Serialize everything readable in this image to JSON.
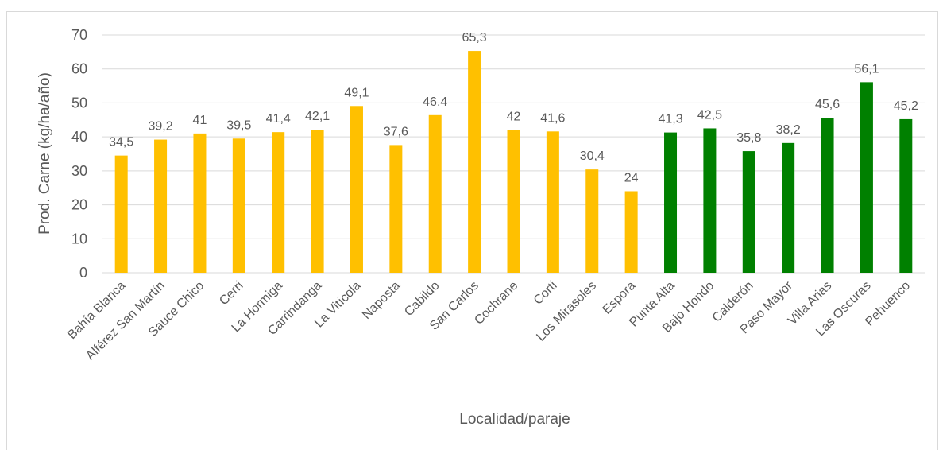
{
  "chart_data": {
    "type": "bar",
    "categories": [
      "Bahía Blanca",
      "Alférez San Martín",
      "Sauce Chico",
      "Cerri",
      "La Hormiga",
      "Carrindanga",
      "La Vitícola",
      "Naposta",
      "Cabildo",
      "San Carlos",
      "Cochrane",
      "Corti",
      "Los Mirasoles",
      "Espora",
      "Punta Alta",
      "Bajo Hondo",
      "Calderón",
      "Paso Mayor",
      "Villa Arias",
      "Las Oscuras",
      "Pehuenco"
    ],
    "values": [
      34.5,
      39.2,
      41,
      39.5,
      41.4,
      42.1,
      49.1,
      37.6,
      46.4,
      65.3,
      42,
      41.6,
      30.4,
      24,
      41.3,
      42.5,
      35.8,
      38.2,
      45.6,
      56.1,
      45.2
    ],
    "value_labels": [
      "34,5",
      "39,2",
      "41",
      "39,5",
      "41,4",
      "42,1",
      "49,1",
      "37,6",
      "46,4",
      "65,3",
      "42",
      "41,6",
      "30,4",
      "24",
      "41,3",
      "42,5",
      "35,8",
      "38,2",
      "45,6",
      "56,1",
      "45,2"
    ],
    "colors": [
      "#ffc000",
      "#ffc000",
      "#ffc000",
      "#ffc000",
      "#ffc000",
      "#ffc000",
      "#ffc000",
      "#ffc000",
      "#ffc000",
      "#ffc000",
      "#ffc000",
      "#ffc000",
      "#ffc000",
      "#ffc000",
      "#008000",
      "#008000",
      "#008000",
      "#008000",
      "#008000",
      "#008000",
      "#008000"
    ],
    "y_label": "Prod. Carne (kg/ha/año)",
    "x_label": "Localidad/paraje",
    "ylim": [
      0,
      70
    ],
    "yticks": [
      0,
      10,
      20,
      30,
      40,
      50,
      60,
      70
    ],
    "grid": true
  }
}
